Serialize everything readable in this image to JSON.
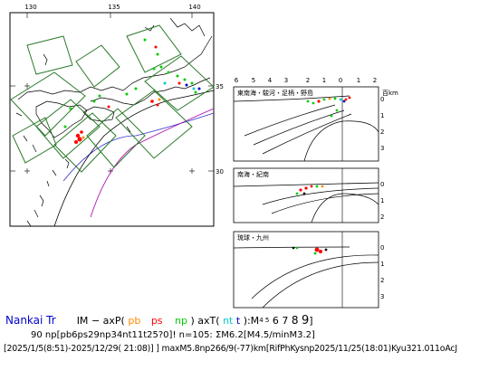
{
  "map": {
    "lon_ticks": [
      "130",
      "135",
      "140"
    ],
    "lat_ticks": [
      "35",
      "30"
    ]
  },
  "sections": {
    "distance_ticks": [
      "6",
      "5",
      "4",
      "3",
      "2",
      "1",
      "0",
      "1",
      "2"
    ],
    "unit": "百km",
    "panels": [
      {
        "title": "東南海・駿河・足柄・野島",
        "depth_ticks": [
          "0",
          "1",
          "2",
          "3"
        ]
      },
      {
        "title": "南海・紀南",
        "depth_ticks": [
          "0",
          "1",
          "2"
        ]
      },
      {
        "title": "琉球・九州",
        "depth_ticks": [
          "0",
          "1",
          "2",
          "3"
        ]
      }
    ]
  },
  "caption": {
    "region": "Nankai Tr",
    "legend": {
      "im": "IM",
      "dash": "−",
      "axp": "axP(",
      "pb": "pb",
      "ps": "ps",
      "np": "np",
      "close_axt": ") axT(",
      "nt": "nt",
      "t": "t",
      "close_m": "):M",
      "m_small": "4 5",
      "m_large": "6 7",
      "m8": "8",
      "m9": "9",
      "close": "]"
    },
    "line2": "90 np[pb6ps29np34nt11t25?0]! n=105: ΣM6.2[M4.5/minM3.2]",
    "line3": "[2025/1/5(8:51)-2025/12/29( 21:08)] ] maxM5.8np266/9(-77)km[RifPhKysnp2025/11/25(18:01)Kyu321.011oAcJ"
  },
  "colors": {
    "pb": "#ff8800",
    "ps": "#ff0000",
    "np": "#00cc00",
    "nt": "#00cccc",
    "region": "#0000cc"
  }
}
